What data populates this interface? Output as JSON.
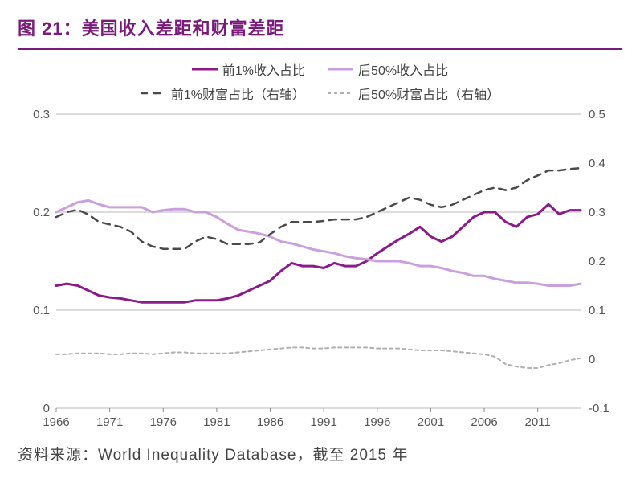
{
  "title": "图 21：美国收入差距和财富差距",
  "source": "资料来源：World Inequality Database，截至 2015 年",
  "chart": {
    "type": "line",
    "background_color": "#ffffff",
    "grid_color": "#b8b8b8",
    "axis_color": "#888888",
    "label_fontsize": 15,
    "x": {
      "min": 1966,
      "max": 2015,
      "ticks": [
        1966,
        1971,
        1976,
        1981,
        1986,
        1991,
        1996,
        2001,
        2006,
        2011
      ]
    },
    "y_left": {
      "min": 0,
      "max": 0.3,
      "ticks": [
        0,
        0.1,
        0.2,
        0.3
      ],
      "tick_labels": [
        "0",
        "0.1",
        "0.2",
        "0.3"
      ]
    },
    "y_right": {
      "min": -0.1,
      "max": 0.5,
      "ticks": [
        -0.1,
        0,
        0.1,
        0.2,
        0.3,
        0.4,
        0.5
      ],
      "tick_labels": [
        "-0.1",
        "0",
        "0.1",
        "0.2",
        "0.3",
        "0.4",
        "0.5"
      ]
    },
    "legend": [
      {
        "key": "s1",
        "label": "前1%收入占比",
        "color": "#8b1a8b",
        "width": 3,
        "dash": "",
        "axis": "left"
      },
      {
        "key": "s2",
        "label": "后50%收入占比",
        "color": "#c9a0dc",
        "width": 3,
        "dash": "",
        "axis": "left"
      },
      {
        "key": "s3",
        "label": "前1%财富占比（右轴）",
        "color": "#4a4a4a",
        "width": 2.5,
        "dash": "9,7",
        "axis": "right"
      },
      {
        "key": "s4",
        "label": "后50%财富占比（右轴）",
        "color": "#b0b0b0",
        "width": 2,
        "dash": "4,4",
        "axis": "right"
      }
    ],
    "series": {
      "s1": [
        [
          1966,
          0.125
        ],
        [
          1967,
          0.127
        ],
        [
          1968,
          0.125
        ],
        [
          1969,
          0.12
        ],
        [
          1970,
          0.115
        ],
        [
          1971,
          0.113
        ],
        [
          1972,
          0.112
        ],
        [
          1973,
          0.11
        ],
        [
          1974,
          0.108
        ],
        [
          1975,
          0.108
        ],
        [
          1976,
          0.108
        ],
        [
          1977,
          0.108
        ],
        [
          1978,
          0.108
        ],
        [
          1979,
          0.11
        ],
        [
          1980,
          0.11
        ],
        [
          1981,
          0.11
        ],
        [
          1982,
          0.112
        ],
        [
          1983,
          0.115
        ],
        [
          1984,
          0.12
        ],
        [
          1985,
          0.125
        ],
        [
          1986,
          0.13
        ],
        [
          1987,
          0.14
        ],
        [
          1988,
          0.148
        ],
        [
          1989,
          0.145
        ],
        [
          1990,
          0.145
        ],
        [
          1991,
          0.143
        ],
        [
          1992,
          0.148
        ],
        [
          1993,
          0.145
        ],
        [
          1994,
          0.145
        ],
        [
          1995,
          0.15
        ],
        [
          1996,
          0.158
        ],
        [
          1997,
          0.165
        ],
        [
          1998,
          0.172
        ],
        [
          1999,
          0.178
        ],
        [
          2000,
          0.185
        ],
        [
          2001,
          0.175
        ],
        [
          2002,
          0.17
        ],
        [
          2003,
          0.175
        ],
        [
          2004,
          0.185
        ],
        [
          2005,
          0.195
        ],
        [
          2006,
          0.2
        ],
        [
          2007,
          0.2
        ],
        [
          2008,
          0.19
        ],
        [
          2009,
          0.185
        ],
        [
          2010,
          0.195
        ],
        [
          2011,
          0.198
        ],
        [
          2012,
          0.208
        ],
        [
          2013,
          0.198
        ],
        [
          2014,
          0.202
        ],
        [
          2015,
          0.202
        ]
      ],
      "s2": [
        [
          1966,
          0.2
        ],
        [
          1967,
          0.205
        ],
        [
          1968,
          0.21
        ],
        [
          1969,
          0.212
        ],
        [
          1970,
          0.208
        ],
        [
          1971,
          0.205
        ],
        [
          1972,
          0.205
        ],
        [
          1973,
          0.205
        ],
        [
          1974,
          0.205
        ],
        [
          1975,
          0.2
        ],
        [
          1976,
          0.202
        ],
        [
          1977,
          0.203
        ],
        [
          1978,
          0.203
        ],
        [
          1979,
          0.2
        ],
        [
          1980,
          0.2
        ],
        [
          1981,
          0.195
        ],
        [
          1982,
          0.188
        ],
        [
          1983,
          0.182
        ],
        [
          1984,
          0.18
        ],
        [
          1985,
          0.178
        ],
        [
          1986,
          0.175
        ],
        [
          1987,
          0.17
        ],
        [
          1988,
          0.168
        ],
        [
          1989,
          0.165
        ],
        [
          1990,
          0.162
        ],
        [
          1991,
          0.16
        ],
        [
          1992,
          0.158
        ],
        [
          1993,
          0.155
        ],
        [
          1994,
          0.153
        ],
        [
          1995,
          0.152
        ],
        [
          1996,
          0.15
        ],
        [
          1997,
          0.15
        ],
        [
          1998,
          0.15
        ],
        [
          1999,
          0.148
        ],
        [
          2000,
          0.145
        ],
        [
          2001,
          0.145
        ],
        [
          2002,
          0.143
        ],
        [
          2003,
          0.14
        ],
        [
          2004,
          0.138
        ],
        [
          2005,
          0.135
        ],
        [
          2006,
          0.135
        ],
        [
          2007,
          0.132
        ],
        [
          2008,
          0.13
        ],
        [
          2009,
          0.128
        ],
        [
          2010,
          0.128
        ],
        [
          2011,
          0.127
        ],
        [
          2012,
          0.125
        ],
        [
          2013,
          0.125
        ],
        [
          2014,
          0.125
        ],
        [
          2015,
          0.127
        ]
      ],
      "s3": [
        [
          1966,
          0.29
        ],
        [
          1967,
          0.3
        ],
        [
          1968,
          0.305
        ],
        [
          1969,
          0.295
        ],
        [
          1970,
          0.28
        ],
        [
          1971,
          0.275
        ],
        [
          1972,
          0.27
        ],
        [
          1973,
          0.26
        ],
        [
          1974,
          0.24
        ],
        [
          1975,
          0.23
        ],
        [
          1976,
          0.225
        ],
        [
          1977,
          0.225
        ],
        [
          1978,
          0.225
        ],
        [
          1979,
          0.24
        ],
        [
          1980,
          0.25
        ],
        [
          1981,
          0.245
        ],
        [
          1982,
          0.235
        ],
        [
          1983,
          0.235
        ],
        [
          1984,
          0.235
        ],
        [
          1985,
          0.238
        ],
        [
          1986,
          0.255
        ],
        [
          1987,
          0.27
        ],
        [
          1988,
          0.28
        ],
        [
          1989,
          0.28
        ],
        [
          1990,
          0.28
        ],
        [
          1991,
          0.282
        ],
        [
          1992,
          0.285
        ],
        [
          1993,
          0.285
        ],
        [
          1994,
          0.285
        ],
        [
          1995,
          0.29
        ],
        [
          1996,
          0.3
        ],
        [
          1997,
          0.31
        ],
        [
          1998,
          0.32
        ],
        [
          1999,
          0.33
        ],
        [
          2000,
          0.325
        ],
        [
          2001,
          0.315
        ],
        [
          2002,
          0.31
        ],
        [
          2003,
          0.315
        ],
        [
          2004,
          0.325
        ],
        [
          2005,
          0.335
        ],
        [
          2006,
          0.345
        ],
        [
          2007,
          0.35
        ],
        [
          2008,
          0.345
        ],
        [
          2009,
          0.35
        ],
        [
          2010,
          0.365
        ],
        [
          2011,
          0.375
        ],
        [
          2012,
          0.385
        ],
        [
          2013,
          0.385
        ],
        [
          2014,
          0.388
        ],
        [
          2015,
          0.39
        ]
      ],
      "s4": [
        [
          1966,
          0.01
        ],
        [
          1967,
          0.01
        ],
        [
          1968,
          0.012
        ],
        [
          1969,
          0.012
        ],
        [
          1970,
          0.012
        ],
        [
          1971,
          0.01
        ],
        [
          1972,
          0.01
        ],
        [
          1973,
          0.012
        ],
        [
          1974,
          0.012
        ],
        [
          1975,
          0.01
        ],
        [
          1976,
          0.012
        ],
        [
          1977,
          0.014
        ],
        [
          1978,
          0.014
        ],
        [
          1979,
          0.012
        ],
        [
          1980,
          0.012
        ],
        [
          1981,
          0.012
        ],
        [
          1982,
          0.012
        ],
        [
          1983,
          0.014
        ],
        [
          1984,
          0.016
        ],
        [
          1985,
          0.018
        ],
        [
          1986,
          0.02
        ],
        [
          1987,
          0.022
        ],
        [
          1988,
          0.024
        ],
        [
          1989,
          0.024
        ],
        [
          1990,
          0.022
        ],
        [
          1991,
          0.022
        ],
        [
          1992,
          0.024
        ],
        [
          1993,
          0.024
        ],
        [
          1994,
          0.024
        ],
        [
          1995,
          0.024
        ],
        [
          1996,
          0.022
        ],
        [
          1997,
          0.022
        ],
        [
          1998,
          0.022
        ],
        [
          1999,
          0.02
        ],
        [
          2000,
          0.018
        ],
        [
          2001,
          0.018
        ],
        [
          2002,
          0.018
        ],
        [
          2003,
          0.016
        ],
        [
          2004,
          0.014
        ],
        [
          2005,
          0.012
        ],
        [
          2006,
          0.01
        ],
        [
          2007,
          0.005
        ],
        [
          2008,
          -0.01
        ],
        [
          2009,
          -0.015
        ],
        [
          2010,
          -0.018
        ],
        [
          2011,
          -0.018
        ],
        [
          2012,
          -0.012
        ],
        [
          2013,
          -0.008
        ],
        [
          2014,
          -0.002
        ],
        [
          2015,
          0.002
        ]
      ]
    }
  }
}
